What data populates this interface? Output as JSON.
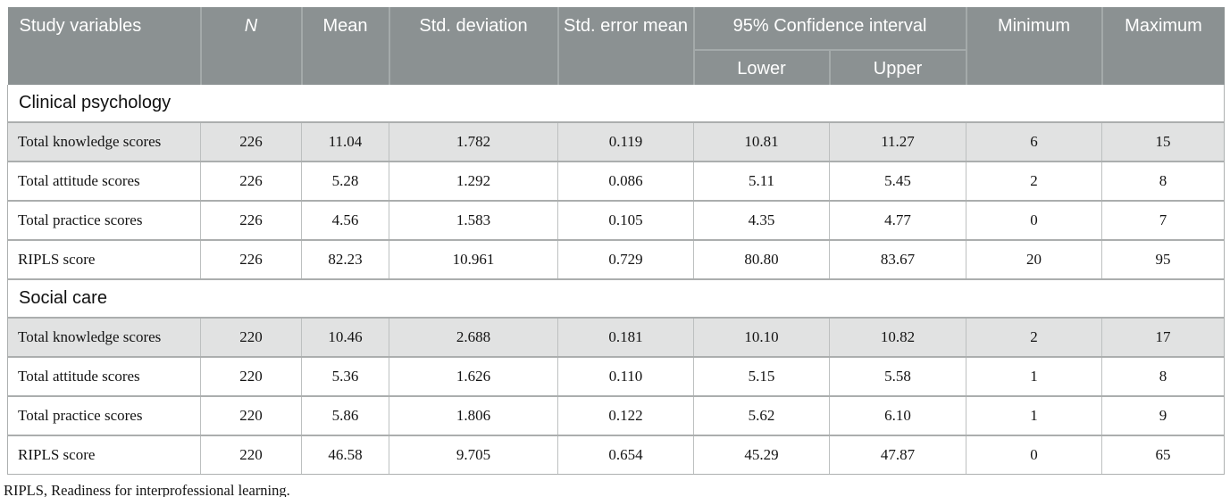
{
  "header": {
    "study_variables": "Study variables",
    "n": "N",
    "mean": "Mean",
    "std_deviation": "Std. deviation",
    "std_error_mean": "Std. error mean",
    "confidence_interval": "95% Confidence interval",
    "lower": "Lower",
    "upper": "Upper",
    "minimum": "Minimum",
    "maximum": "Maximum"
  },
  "sections": [
    {
      "title": "Clinical psychology",
      "rows": [
        [
          "Total knowledge scores",
          "226",
          "11.04",
          "1.782",
          "0.119",
          "10.81",
          "11.27",
          "6",
          "15"
        ],
        [
          "Total attitude scores",
          "226",
          "5.28",
          "1.292",
          "0.086",
          "5.11",
          "5.45",
          "2",
          "8"
        ],
        [
          "Total practice scores",
          "226",
          "4.56",
          "1.583",
          "0.105",
          "4.35",
          "4.77",
          "0",
          "7"
        ],
        [
          "RIPLS score",
          "226",
          "82.23",
          "10.961",
          "0.729",
          "80.80",
          "83.67",
          "20",
          "95"
        ]
      ]
    },
    {
      "title": "Social care",
      "rows": [
        [
          "Total knowledge scores",
          "220",
          "10.46",
          "2.688",
          "0.181",
          "10.10",
          "10.82",
          "2",
          "17"
        ],
        [
          "Total attitude scores",
          "220",
          "5.36",
          "1.626",
          "0.110",
          "5.15",
          "5.58",
          "1",
          "8"
        ],
        [
          "Total practice scores",
          "220",
          "5.86",
          "1.806",
          "0.122",
          "5.62",
          "6.10",
          "1",
          "9"
        ],
        [
          "RIPLS score",
          "220",
          "46.58",
          "9.705",
          "0.654",
          "45.29",
          "47.87",
          "0",
          "65"
        ]
      ]
    }
  ],
  "footnote": "RIPLS, Readiness for interprofessional learning.",
  "colors": {
    "header_bg": "#8b9192",
    "header_text": "#ffffff",
    "header_divider": "#a4aaaa",
    "shaded_row_bg": "#e1e2e2",
    "body_border": "#abaeae"
  }
}
